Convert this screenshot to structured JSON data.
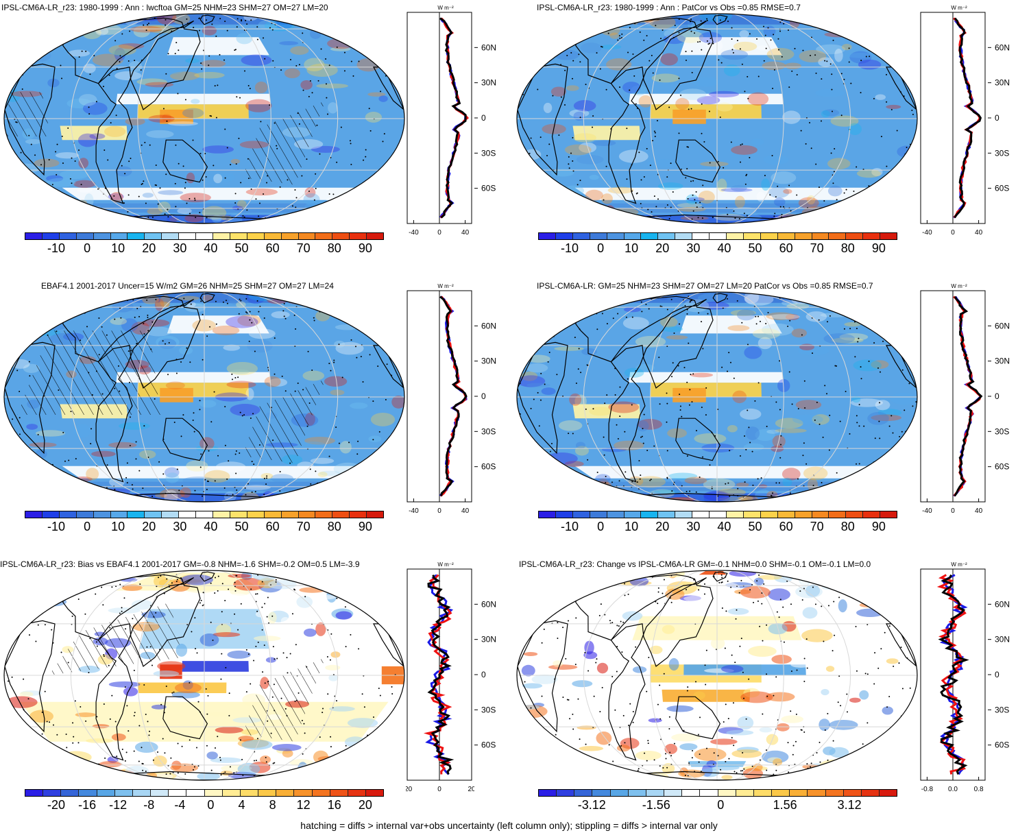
{
  "colors": {
    "default_palette": [
      "#2b1ee6",
      "#1f3fe8",
      "#2f62e0",
      "#3d7ad9",
      "#4d93e0",
      "#56a8ea",
      "#18b4ef",
      "#6fc3f2",
      "#b2dcf4",
      "#ffffff",
      "#ffffff",
      "#fff3a6",
      "#fde36a",
      "#fcd24a",
      "#f9b936",
      "#f7a12a",
      "#f58920",
      "#f26d18",
      "#ee4e12",
      "#e8300e",
      "#d61a0c"
    ],
    "diff_palette": [
      "#2b1ee6",
      "#2f3fe0",
      "#3565d8",
      "#4489de",
      "#58a6e6",
      "#7ec0ee",
      "#a8d6f4",
      "#d0e9f8",
      "#ffffff",
      "#ffffff",
      "#fff7c4",
      "#ffec94",
      "#fddc68",
      "#fbc848",
      "#f9af36",
      "#f7922a",
      "#f47420",
      "#ef5318",
      "#e63312",
      "#d81a0e"
    ],
    "line_model": "#ee1111",
    "line_obs": "#1a1ae6",
    "line_ref": "#000000",
    "ocean_base": "#5aa5e6"
  },
  "footer": "hatching = diffs > internal var+obs uncertainty (left column only); stippling = diffs > internal var only",
  "profile_unit": "W m⁻²",
  "lat_labels": [
    "60N",
    "30N",
    "0",
    "30S",
    "60S"
  ],
  "panels": [
    {
      "id": "model-mean",
      "title": "IPSL-CM6A-LR_r23: 1980-1999 : Ann : lwcftoa GM=25 NHM=23 SHM=27 OM=27 LM=20",
      "palette": "default",
      "colorbar_labels": [
        "-10",
        "0",
        "10",
        "20",
        "30",
        "40",
        "50",
        "60",
        "70",
        "80",
        "90"
      ],
      "profile_ticks": [
        "-40",
        "0",
        "40"
      ],
      "profile_xrange": [
        -50,
        50
      ],
      "hatching": true
    },
    {
      "id": "model-patcor",
      "title": "IPSL-CM6A-LR_r23: 1980-1999 : Ann : PatCor vs Obs =0.85 RMSE=0.7",
      "palette": "default",
      "colorbar_labels": [
        "-10",
        "0",
        "10",
        "20",
        "30",
        "40",
        "50",
        "60",
        "70",
        "80",
        "90"
      ],
      "profile_ticks": [
        "-40",
        "0",
        "40"
      ],
      "profile_xrange": [
        -50,
        50
      ],
      "hatching": false
    },
    {
      "id": "obs-mean",
      "title": "EBAF4.1 2001-2017 Uncer=15 W/m2 GM=26 NHM=25 SHM=27 OM=27 LM=24",
      "palette": "default",
      "colorbar_labels": [
        "-10",
        "0",
        "10",
        "20",
        "30",
        "40",
        "50",
        "60",
        "70",
        "80",
        "90"
      ],
      "profile_ticks": [
        "-40",
        "0",
        "40"
      ],
      "profile_xrange": [
        -50,
        50
      ],
      "hatching": true
    },
    {
      "id": "ref-model",
      "title": "IPSL-CM6A-LR: GM=25 NHM=23 SHM=27 OM=27 LM=20 PatCor vs Obs =0.85 RMSE=0.7",
      "palette": "default",
      "colorbar_labels": [
        "-10",
        "0",
        "10",
        "20",
        "30",
        "40",
        "50",
        "60",
        "70",
        "80",
        "90"
      ],
      "profile_ticks": [
        "-40",
        "0",
        "40"
      ],
      "profile_xrange": [
        -50,
        50
      ],
      "hatching": false
    },
    {
      "id": "bias",
      "title": "IPSL-CM6A-LR_r23: Bias vs EBAF4.1 2001-2017 GM=-0.8 NHM=-1.6 SHM=-0.2 OM=0.5 LM=-3.9",
      "palette": "diff",
      "colorbar_labels": [
        "-20",
        "-16",
        "-12",
        "-8",
        "-4",
        "0",
        "4",
        "8",
        "12",
        "16",
        "20"
      ],
      "profile_ticks": [
        "-20",
        "0",
        "20"
      ],
      "profile_xrange": [
        -20,
        20
      ],
      "hatching": true
    },
    {
      "id": "change",
      "title": "IPSL-CM6A-LR_r23: Change vs IPSL-CM6A-LR GM=-0.1 NHM=0.0 SHM=-0.1 OM=-0.1 LM=0.0",
      "palette": "diff",
      "colorbar_labels": [
        "-3.12",
        "-1.56",
        "0",
        "1.56",
        "3.12"
      ],
      "profile_ticks": [
        "-0.8",
        "0.0",
        "0.8"
      ],
      "profile_xrange": [
        -1.0,
        1.0
      ],
      "hatching": false
    }
  ]
}
